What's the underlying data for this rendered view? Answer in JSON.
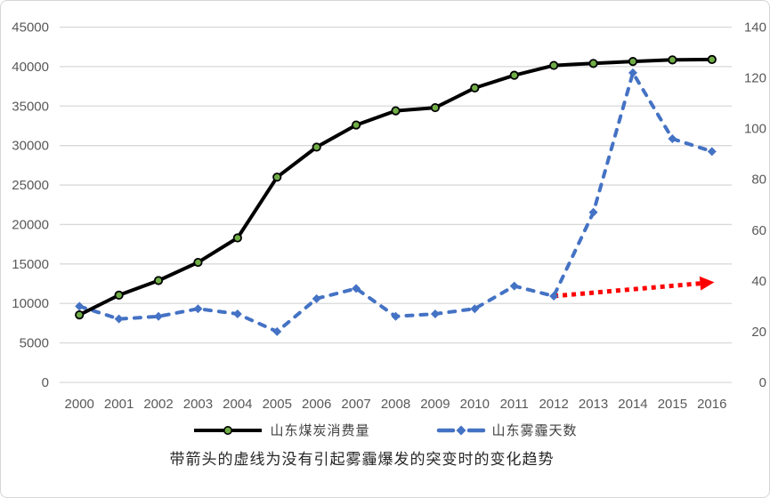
{
  "chart_data": {
    "type": "line",
    "title": "",
    "caption": "带箭头的虚线为没有引起雾霾爆发的突变时的变化趋势",
    "x": [
      "2000",
      "2001",
      "2002",
      "2003",
      "2004",
      "2005",
      "2006",
      "2007",
      "2008",
      "2009",
      "2010",
      "2011",
      "2012",
      "2013",
      "2014",
      "2015",
      "2016"
    ],
    "series": [
      {
        "name": "山东煤炭消费量",
        "axis": "left",
        "line_style": "solid",
        "line_color": "#000000",
        "marker": "circle",
        "marker_fill": "#70ad47",
        "marker_stroke": "#000000",
        "values": [
          8550,
          11050,
          12900,
          15200,
          18300,
          26000,
          29800,
          32600,
          34400,
          34800,
          37300,
          38900,
          40150,
          40400,
          40650,
          40850,
          40900
        ]
      },
      {
        "name": "山东雾霾天数",
        "axis": "right",
        "line_style": "dashed",
        "line_color": "#4472c4",
        "marker": "diamond",
        "marker_fill": "#4472c4",
        "marker_stroke": "#4472c4",
        "values": [
          30,
          25,
          26,
          29,
          27,
          20,
          33,
          37,
          26,
          27,
          29,
          38,
          34,
          67,
          122,
          96,
          91
        ]
      }
    ],
    "annotation_arrow": {
      "description": "红色带箭头虚线：没有引起雾霾爆发的突变时的变化趋势",
      "style": "dotted",
      "color": "#ff0000",
      "axis": "right",
      "from": {
        "x": "2012",
        "value": 34
      },
      "to": {
        "x": "2015.7",
        "value": 39
      }
    },
    "left_axis": {
      "min": 0,
      "max": 45000,
      "step": 5000,
      "tick_labels": [
        "0",
        "5000",
        "10000",
        "15000",
        "20000",
        "25000",
        "30000",
        "35000",
        "40000",
        "45000"
      ]
    },
    "right_axis": {
      "min": 0,
      "max": 140,
      "step": 20,
      "tick_labels": [
        "0",
        "20",
        "40",
        "60",
        "80",
        "100",
        "120",
        "140"
      ]
    },
    "grid": true,
    "legend_position": "bottom"
  },
  "legend": {
    "coal_label": "山东煤炭消费量",
    "haze_label": "山东雾霾天数"
  },
  "colors": {
    "grid": "#d9d9d9",
    "tick_text": "#595959",
    "coal_line": "#000000",
    "coal_marker": "#70ad47",
    "haze_line": "#4472c4",
    "arrow": "#ff0000",
    "frame_border": "#d6d6d6"
  }
}
